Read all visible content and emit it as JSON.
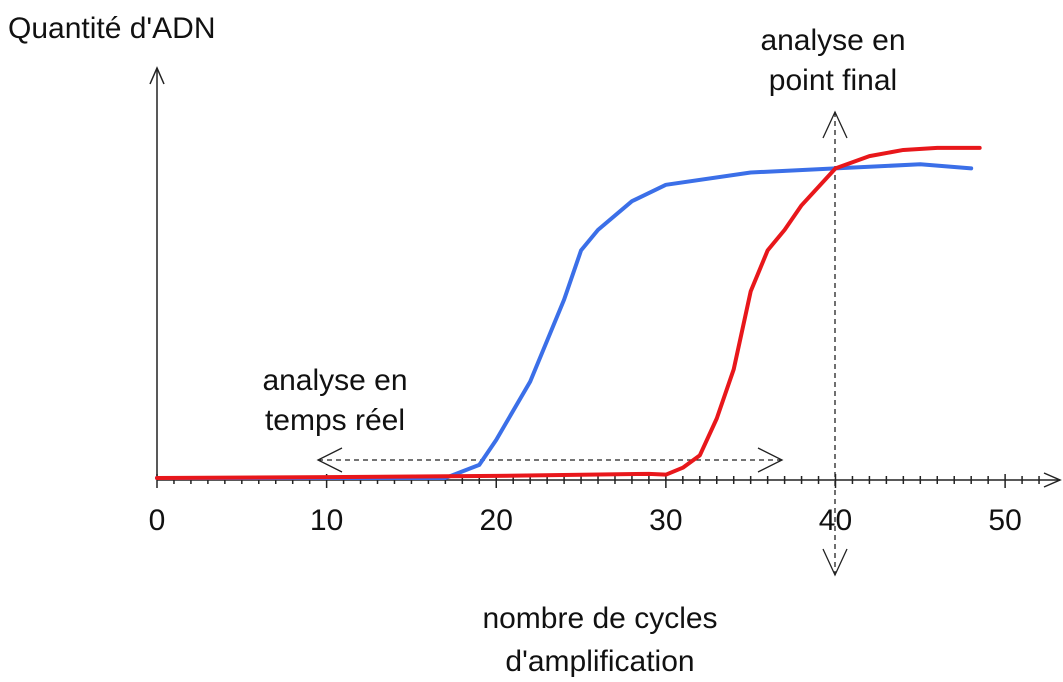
{
  "chart_data": {
    "type": "line",
    "ylabel": "Quantité d'ADN",
    "xlabel": [
      "nombre de cycles",
      "d'amplification"
    ],
    "annotations": [
      [
        "analyse en",
        "temps réel"
      ],
      [
        "analyse en",
        "point final"
      ]
    ],
    "xlim": [
      0,
      53
    ],
    "ylim": [
      0,
      100
    ],
    "xticks": [
      0,
      10,
      20,
      30,
      40,
      50
    ],
    "xminorticks": [
      1,
      2,
      3,
      4,
      5,
      6,
      7,
      8,
      9,
      11,
      12,
      13,
      14,
      15,
      16,
      17,
      18,
      19,
      21,
      22,
      23,
      24,
      25,
      26,
      27,
      28,
      29,
      31,
      32,
      33,
      34,
      35,
      36,
      37,
      38,
      39,
      41,
      42,
      43,
      44,
      45,
      46,
      47,
      48,
      49,
      51,
      52
    ],
    "series": [
      {
        "color": "#3b6fe8",
        "x": [
          0,
          10,
          17,
          19,
          20,
          22,
          23,
          24,
          25,
          26,
          28,
          30,
          35,
          40,
          45,
          48
        ],
        "values": [
          0.5,
          0.5,
          0.5,
          3.7,
          9.8,
          24,
          34,
          44,
          56,
          61,
          68,
          72,
          75,
          76,
          77,
          76
        ]
      },
      {
        "color": "#e8171b",
        "x": [
          0,
          10,
          20,
          29,
          30,
          31,
          32,
          33,
          34,
          35,
          36,
          37,
          38,
          40,
          42,
          44,
          46,
          48.5
        ],
        "values": [
          0.5,
          0.7,
          1,
          1.5,
          1.3,
          3,
          6,
          15,
          27,
          46,
          56,
          61,
          67,
          76,
          79,
          80.5,
          81,
          81
        ]
      }
    ]
  }
}
